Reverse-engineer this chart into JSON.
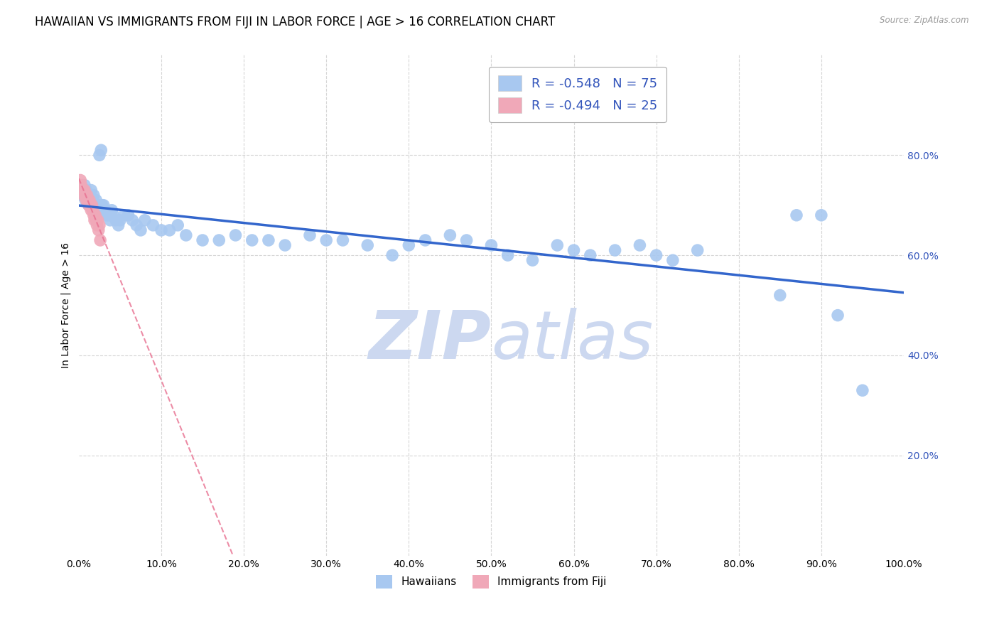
{
  "title": "HAWAIIAN VS IMMIGRANTS FROM FIJI IN LABOR FORCE | AGE > 16 CORRELATION CHART",
  "source": "Source: ZipAtlas.com",
  "ylabel": "In Labor Force | Age > 16",
  "xlim": [
    0.0,
    1.0
  ],
  "ylim": [
    0.0,
    1.0
  ],
  "xticklabels": [
    "0.0%",
    "10.0%",
    "20.0%",
    "30.0%",
    "40.0%",
    "50.0%",
    "60.0%",
    "70.0%",
    "80.0%",
    "90.0%",
    "100.0%"
  ],
  "yticklabels_right": [
    "20.0%",
    "40.0%",
    "60.0%",
    "80.0%"
  ],
  "hawaiians_x": [
    0.003,
    0.005,
    0.007,
    0.008,
    0.009,
    0.01,
    0.011,
    0.012,
    0.013,
    0.014,
    0.015,
    0.016,
    0.017,
    0.018,
    0.019,
    0.02,
    0.021,
    0.022,
    0.023,
    0.024,
    0.025,
    0.027,
    0.028,
    0.03,
    0.032,
    0.034,
    0.036,
    0.038,
    0.04,
    0.042,
    0.045,
    0.048,
    0.05,
    0.055,
    0.06,
    0.065,
    0.07,
    0.075,
    0.08,
    0.09,
    0.1,
    0.11,
    0.12,
    0.13,
    0.15,
    0.17,
    0.19,
    0.21,
    0.23,
    0.25,
    0.28,
    0.3,
    0.32,
    0.35,
    0.38,
    0.4,
    0.42,
    0.45,
    0.47,
    0.5,
    0.52,
    0.55,
    0.58,
    0.6,
    0.62,
    0.65,
    0.68,
    0.7,
    0.72,
    0.75,
    0.85,
    0.87,
    0.9,
    0.92,
    0.95
  ],
  "hawaiians_y": [
    0.72,
    0.73,
    0.74,
    0.71,
    0.73,
    0.72,
    0.71,
    0.7,
    0.72,
    0.71,
    0.73,
    0.7,
    0.71,
    0.72,
    0.7,
    0.69,
    0.71,
    0.7,
    0.69,
    0.7,
    0.8,
    0.81,
    0.7,
    0.7,
    0.69,
    0.68,
    0.68,
    0.67,
    0.69,
    0.68,
    0.67,
    0.66,
    0.67,
    0.68,
    0.68,
    0.67,
    0.66,
    0.65,
    0.67,
    0.66,
    0.65,
    0.65,
    0.66,
    0.64,
    0.63,
    0.63,
    0.64,
    0.63,
    0.63,
    0.62,
    0.64,
    0.63,
    0.63,
    0.62,
    0.6,
    0.62,
    0.63,
    0.64,
    0.63,
    0.62,
    0.6,
    0.59,
    0.62,
    0.61,
    0.6,
    0.61,
    0.62,
    0.6,
    0.59,
    0.61,
    0.52,
    0.68,
    0.68,
    0.48,
    0.33
  ],
  "fiji_x": [
    0.002,
    0.003,
    0.004,
    0.005,
    0.006,
    0.007,
    0.008,
    0.009,
    0.01,
    0.011,
    0.012,
    0.013,
    0.014,
    0.015,
    0.016,
    0.017,
    0.018,
    0.019,
    0.02,
    0.021,
    0.022,
    0.023,
    0.024,
    0.025,
    0.026
  ],
  "fiji_y": [
    0.75,
    0.74,
    0.73,
    0.73,
    0.72,
    0.73,
    0.72,
    0.71,
    0.72,
    0.71,
    0.7,
    0.71,
    0.7,
    0.69,
    0.7,
    0.69,
    0.68,
    0.67,
    0.68,
    0.67,
    0.66,
    0.67,
    0.65,
    0.66,
    0.63
  ],
  "hawaiians_color": "#a8c8f0",
  "fiji_color": "#f0a8b8",
  "hawaiians_line_color": "#3366cc",
  "fiji_line_color": "#e87090",
  "hawaiians_R": "-0.548",
  "hawaiians_N": "75",
  "fiji_R": "-0.494",
  "fiji_N": "25",
  "watermark_zip": "ZIP",
  "watermark_atlas": "atlas",
  "watermark_color": "#ccd8f0",
  "legend_label_1": "Hawaiians",
  "legend_label_2": "Immigrants from Fiji",
  "title_fontsize": 12,
  "axis_label_fontsize": 10,
  "tick_fontsize": 10,
  "background_color": "#ffffff",
  "grid_color": "#cccccc",
  "right_axis_color": "#3355bb"
}
